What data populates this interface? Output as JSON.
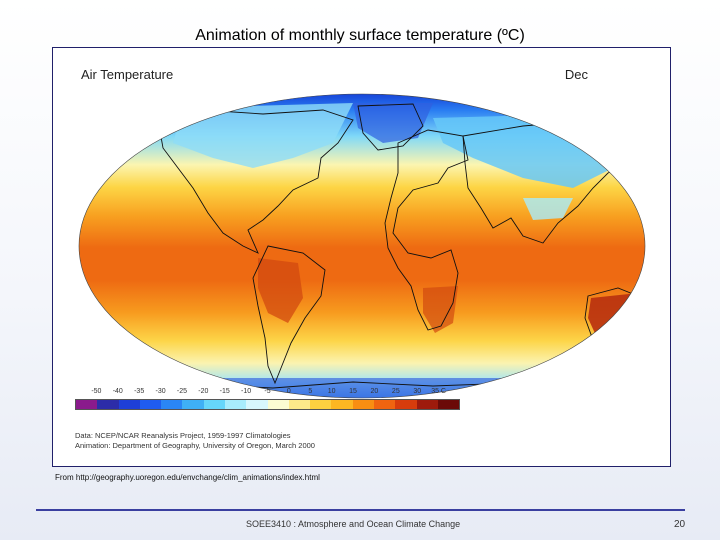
{
  "slide": {
    "title": "Animation of monthly surface temperature (ºC)",
    "source": "From http://geography.uoregon.edu/envchange/clim_animations/index.html",
    "footer": "SOEE3410 : Atmosphere and Ocean Climate Change",
    "page_number": "20"
  },
  "map": {
    "title": "Air Temperature",
    "month": "Dec",
    "scale_labels": [
      "-50",
      "-40",
      "-35",
      "-30",
      "-25",
      "-20",
      "-15",
      "-10",
      "-5",
      "0",
      "5",
      "10",
      "15",
      "20",
      "25",
      "30",
      "35 C"
    ],
    "scale_colors": [
      "#8a1a8c",
      "#2c2ca8",
      "#1e3fd8",
      "#1f5cf0",
      "#2a86f5",
      "#3fb0f5",
      "#66d6fa",
      "#a8ecfc",
      "#d8f7fd",
      "#fbfcd2",
      "#fde98a",
      "#fdd040",
      "#fdb722",
      "#f88e12",
      "#ef6410",
      "#d73c0c",
      "#9e1a0c",
      "#6b0a08"
    ],
    "credits": [
      "Data:  NCEP/NCAR Reanalysis Project, 1959-1997 Climatologies",
      "Animation:  Department of Geography, University of Oregon, March 2000"
    ]
  }
}
